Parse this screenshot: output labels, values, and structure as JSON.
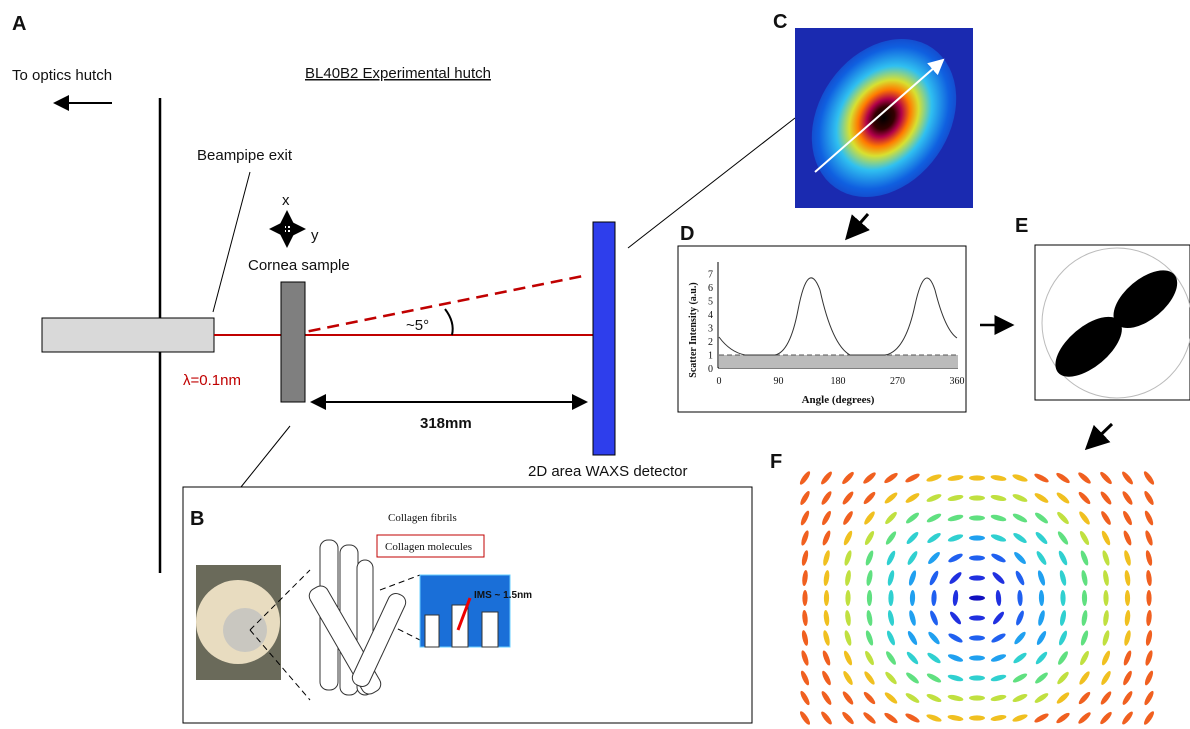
{
  "panel_a": {
    "label": "A",
    "to_optics": "To optics hutch",
    "hutch": "BL40B2 Experimental hutch",
    "beampipe": "Beampipe exit",
    "axis_x": "x",
    "axis_y": "y",
    "sample": "Cornea sample",
    "angle": "~5°",
    "wavelength": "λ=0.1nm",
    "distance": "318mm",
    "detector": "2D area WAXS detector"
  },
  "panel_b": {
    "label": "B",
    "fibrils": "Collagen fibrils",
    "molecules": "Collagen molecules",
    "ims": "IMS ~ 1.5nm"
  },
  "panel_c": {
    "label": "C"
  },
  "panel_d": {
    "label": "D",
    "y_label": "Scatter Intensity (a.u.)",
    "x_label": "Angle (degrees)",
    "yticks": [
      "0",
      "1",
      "2",
      "3",
      "4",
      "5",
      "6",
      "7"
    ],
    "xticks": [
      "0",
      "90",
      "180",
      "270",
      "360"
    ]
  },
  "panel_e": {
    "label": "E"
  },
  "panel_f": {
    "label": "F"
  }
}
